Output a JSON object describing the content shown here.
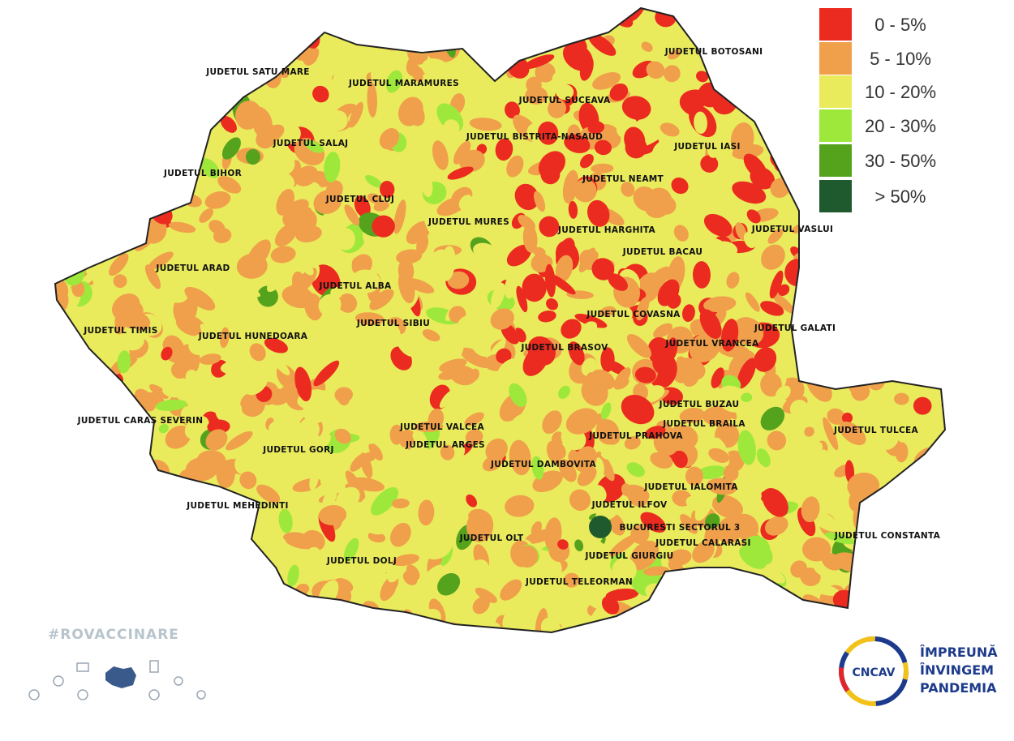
{
  "legend": {
    "items": [
      {
        "label": "0 - 5%",
        "color": "#ec2b20"
      },
      {
        "label": "5 - 10%",
        "color": "#f0a04b"
      },
      {
        "label": "10 - 20%",
        "color": "#e9eb5c"
      },
      {
        "label": "20 - 30%",
        "color": "#9ee83c"
      },
      {
        "label": "30 - 50%",
        "color": "#55a21d"
      },
      {
        "label": "> 50%",
        "color": "#1f5a2e"
      }
    ]
  },
  "counties": [
    "JUDETUL SATU MARE",
    "JUDETUL MARAMURES",
    "JUDETUL BOTOSANI",
    "JUDETUL SUCEAVA",
    "JUDETUL BISTRITA-NASAUD",
    "JUDETUL IASI",
    "JUDETUL SALAJ",
    "JUDETUL BIHOR",
    "JUDETUL CLUJ",
    "JUDETUL NEAMT",
    "JUDETUL MURES",
    "JUDETUL HARGHITA",
    "JUDETUL VASLUI",
    "JUDETUL BACAU",
    "JUDETUL ARAD",
    "JUDETUL ALBA",
    "JUDETUL COVASNA",
    "JUDETUL GALATI",
    "JUDETUL TIMIS",
    "JUDETUL HUNEDOARA",
    "JUDETUL SIBIU",
    "JUDETUL BRASOV",
    "JUDETUL VRANCEA",
    "JUDETUL BUZAU",
    "JUDETUL BRAILA",
    "JUDETUL TULCEA",
    "JUDETUL CARAS SEVERIN",
    "JUDETUL VALCEA",
    "JUDETUL ARGES",
    "JUDETUL PRAHOVA",
    "JUDETUL GORJ",
    "JUDETUL DAMBOVITA",
    "JUDETUL IALOMITA",
    "JUDETUL ILFOV",
    "JUDETUL MEHEDINTI",
    "BUCURESTI SECTORUL 3",
    "JUDETUL CALARASI",
    "JUDETUL CONSTANTA",
    "JUDETUL GIURGIU",
    "JUDETUL OLT",
    "JUDETUL DOLJ",
    "JUDETUL TELEORMAN"
  ],
  "hashtag": "#ROVACCINARE",
  "logo": {
    "acronym": "CNCAV",
    "lines": [
      "ÎMPREUNĂ",
      "ÎNVINGEM",
      "PANDEMIA"
    ]
  }
}
